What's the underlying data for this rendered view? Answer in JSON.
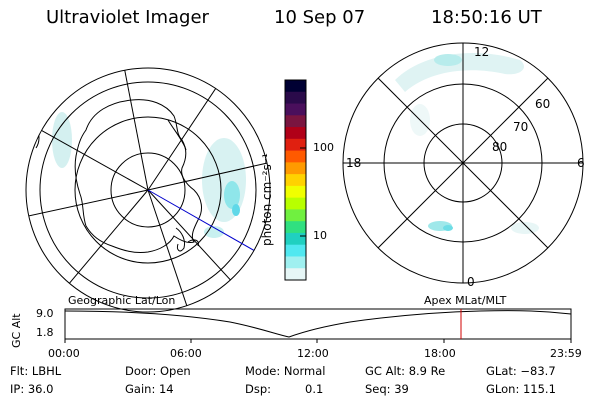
{
  "header": {
    "title": "Ultraviolet Imager",
    "date": "10 Sep 07",
    "time": "18:50:16 UT"
  },
  "colorbar": {
    "unit_label": "photon cm⁻²s⁻¹",
    "ticks": [
      "100",
      "10"
    ],
    "colors": [
      "#000033",
      "#2a0a4a",
      "#4a0f5c",
      "#7a1540",
      "#b00018",
      "#e02010",
      "#ff5a00",
      "#ff9a00",
      "#ffd200",
      "#f0ff00",
      "#b8ff00",
      "#70f040",
      "#30e080",
      "#20d0c0",
      "#50e8f0",
      "#9ff0f0",
      "#e6f6f6"
    ]
  },
  "left_map": {
    "label": "Geographic Lat/Lon"
  },
  "right_map": {
    "label": "Apex MLat/MLT",
    "mlt_labels": {
      "top": "12",
      "right": "6",
      "left": "18",
      "bottom": "0"
    },
    "lat_labels": [
      "60",
      "70",
      "80"
    ]
  },
  "altitude_plot": {
    "ylabel": "GC Alt",
    "y_ticks": [
      "9.0",
      "1.8"
    ],
    "x_ticks": [
      "00:00",
      "06:00",
      "12:00",
      "18:00",
      "23:59"
    ],
    "marker_color": "#d00000"
  },
  "status": {
    "row1": {
      "flt": "Flt: LBHL",
      "door": "Door: Open",
      "mode": "Mode: Normal",
      "gcalt": "GC Alt: 8.9 Re",
      "glat": "GLat: −83.7"
    },
    "row2": {
      "ip": "IP: 36.0",
      "gain": "Gain: 14",
      "dsp_label": "Dsp:",
      "dsp_value": "0.1",
      "seq": "Seq: 39",
      "glon": "GLon: 115.1"
    }
  }
}
